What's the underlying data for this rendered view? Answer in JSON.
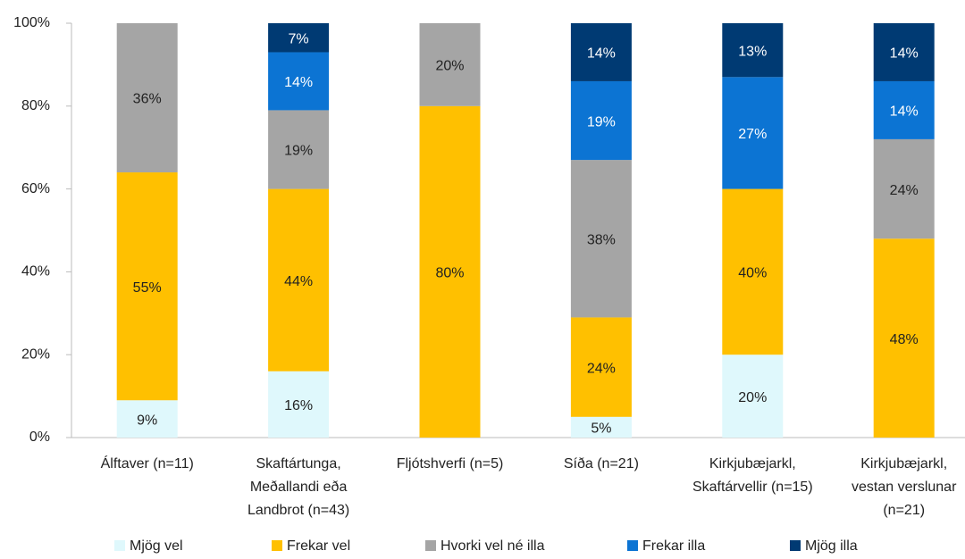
{
  "chart_data": {
    "type": "stacked_bar",
    "categories": [
      "Álftaver (n=11)",
      "Skaftártunga,\nMeðallandi eða\nLandbrot (n=43)",
      "Fljótshverfi (n=5)",
      "Síða (n=21)",
      "Kirkjubæjarkl,\nSkaftárvellir (n=15)",
      "Kirkjubæjarkl,\nvestan verslunar\n(n=21)"
    ],
    "series": [
      {
        "name": "Mjög vel",
        "color": "#dff8fc",
        "label_color": "#222222",
        "values": [
          9,
          16,
          0,
          5,
          20,
          0
        ],
        "value_labels": [
          "9%",
          "16%",
          null,
          "5%",
          "20%",
          null
        ]
      },
      {
        "name": "Frekar vel",
        "color": "#ffc000",
        "label_color": "#222222",
        "values": [
          55,
          44,
          80,
          24,
          40,
          48
        ],
        "value_labels": [
          "55%",
          "44%",
          "80%",
          "24%",
          "40%",
          "48%"
        ]
      },
      {
        "name": "Hvorki vel né illa",
        "color": "#a5a5a5",
        "label_color": "#222222",
        "values": [
          36,
          19,
          20,
          38,
          0,
          24
        ],
        "value_labels": [
          "36%",
          "19%",
          "20%",
          "38%",
          null,
          "24%"
        ]
      },
      {
        "name": "Frekar illa",
        "color": "#0c74d3",
        "label_color": "#ffffff",
        "values": [
          0,
          14,
          0,
          19,
          27,
          14
        ],
        "value_labels": [
          null,
          "14%",
          null,
          "19%",
          "27%",
          "14%"
        ]
      },
      {
        "name": "Mjög illa",
        "color": "#003a73",
        "label_color": "#ffffff",
        "values": [
          0,
          7,
          0,
          14,
          13,
          14
        ],
        "value_labels": [
          null,
          "7%",
          null,
          "14%",
          "13%",
          "14%"
        ]
      }
    ],
    "ylim": [
      0,
      100
    ],
    "yticks": [
      {
        "value": 0,
        "label": "0%"
      },
      {
        "value": 20,
        "label": "20%"
      },
      {
        "value": 40,
        "label": "40%"
      },
      {
        "value": 60,
        "label": "60%"
      },
      {
        "value": 80,
        "label": "80%"
      },
      {
        "value": 100,
        "label": "100%"
      }
    ],
    "legend": "bottom"
  }
}
